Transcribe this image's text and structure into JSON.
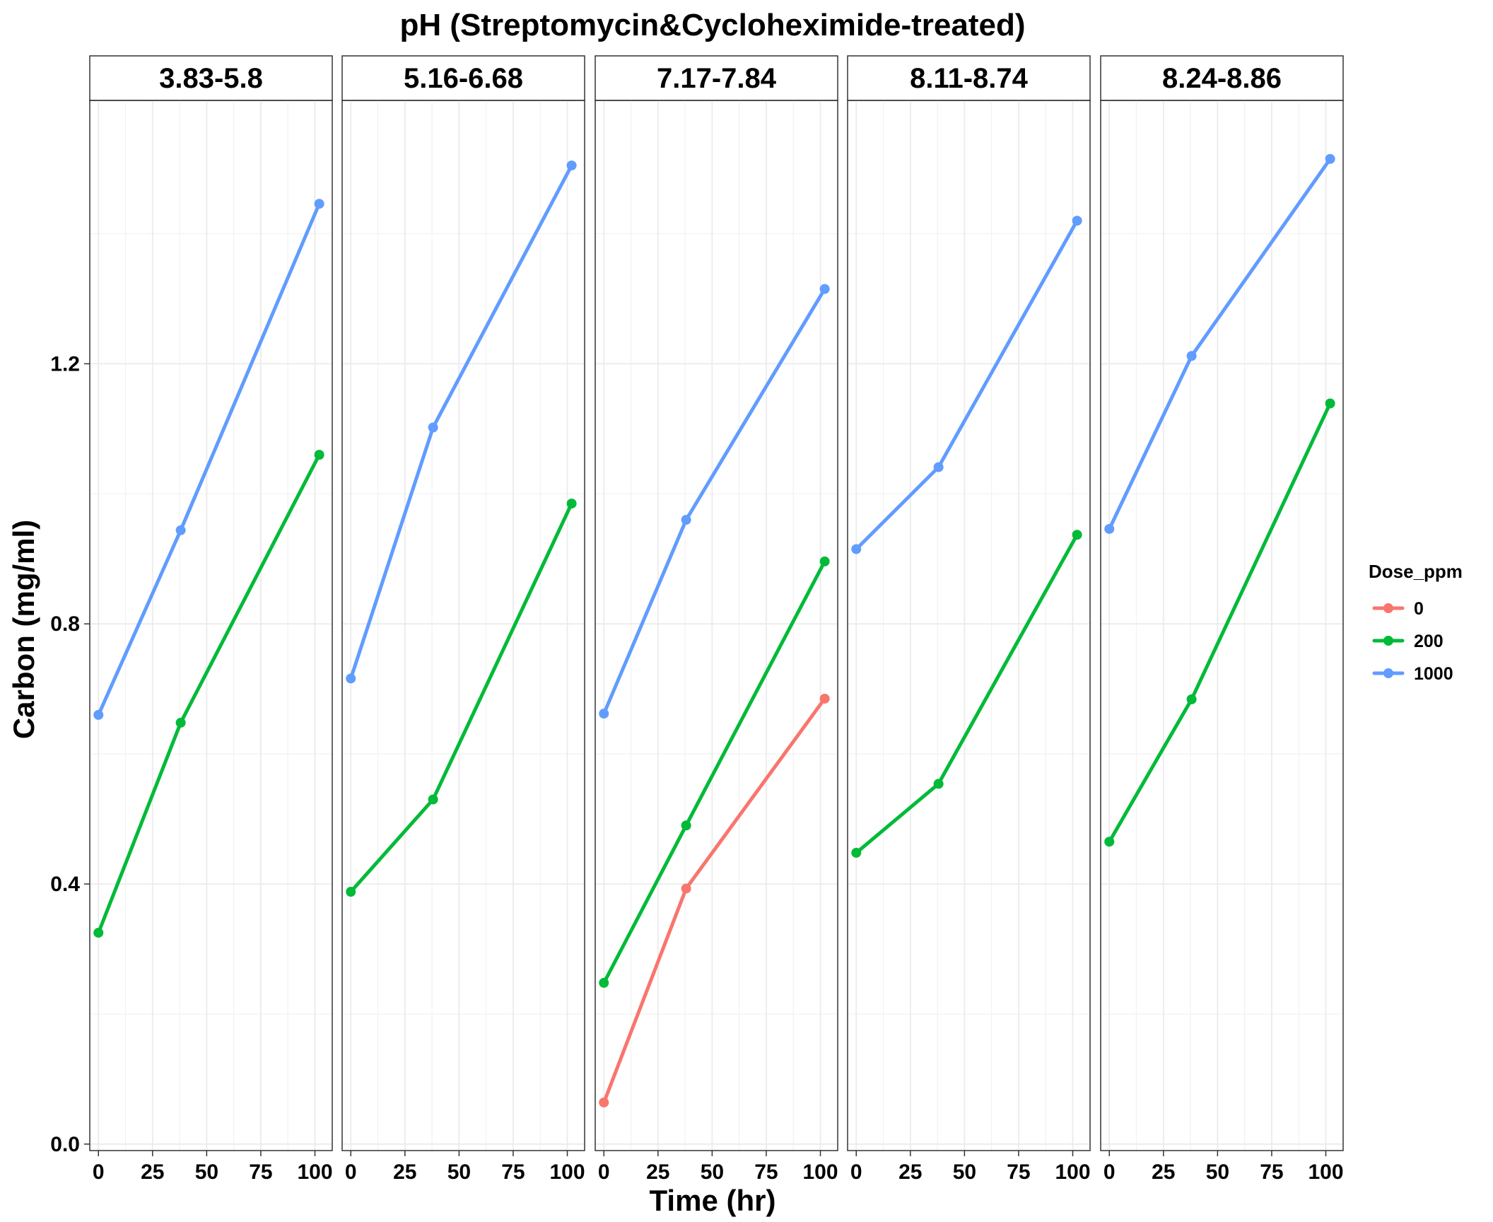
{
  "chart_data": {
    "type": "line",
    "title": "pH (Streptomycin&Cycloheximide-treated)",
    "xlabel": "Time (hr)",
    "ylabel": "Carbon (mg/ml)",
    "xlim": [
      -4,
      108
    ],
    "ylim": [
      -0.01,
      1.605
    ],
    "x_ticks": [
      0,
      25,
      50,
      75,
      100
    ],
    "x_tick_labels": [
      "0",
      "25",
      "50",
      "75",
      "100"
    ],
    "y_ticks": [
      0.0,
      0.4,
      0.8,
      1.2
    ],
    "y_tick_labels": [
      "0.0",
      "0.4",
      "0.8",
      "1.2"
    ],
    "grid": true,
    "legend": {
      "title": "Dose_ppm",
      "position": "right",
      "entries": [
        {
          "label": "0",
          "color": "#F8766D"
        },
        {
          "label": "200",
          "color": "#00BA38"
        },
        {
          "label": "1000",
          "color": "#619CFF"
        }
      ]
    },
    "panels": [
      {
        "label": "3.83-5.8",
        "series": [
          {
            "name": "200",
            "color": "#00BA38",
            "x": [
              0,
              38,
              102
            ],
            "y": [
              0.325,
              0.648,
              1.06
            ]
          },
          {
            "name": "1000",
            "color": "#619CFF",
            "x": [
              0,
              38,
              102
            ],
            "y": [
              0.66,
              0.944,
              1.446
            ]
          }
        ]
      },
      {
        "label": "5.16-6.68",
        "series": [
          {
            "name": "200",
            "color": "#00BA38",
            "x": [
              0,
              38,
              102
            ],
            "y": [
              0.388,
              0.53,
              0.985
            ]
          },
          {
            "name": "1000",
            "color": "#619CFF",
            "x": [
              0,
              38,
              102
            ],
            "y": [
              0.716,
              1.102,
              1.505
            ]
          }
        ]
      },
      {
        "label": "7.17-7.84",
        "series": [
          {
            "name": "0",
            "color": "#F8766D",
            "x": [
              0,
              38,
              102
            ],
            "y": [
              0.064,
              0.393,
              0.685
            ]
          },
          {
            "name": "200",
            "color": "#00BA38",
            "x": [
              0,
              38,
              102
            ],
            "y": [
              0.248,
              0.49,
              0.896
            ]
          },
          {
            "name": "1000",
            "color": "#619CFF",
            "x": [
              0,
              38,
              102
            ],
            "y": [
              0.662,
              0.96,
              1.315
            ]
          }
        ]
      },
      {
        "label": "8.11-8.74",
        "series": [
          {
            "name": "200",
            "color": "#00BA38",
            "x": [
              0,
              38,
              102
            ],
            "y": [
              0.448,
              0.554,
              0.937
            ]
          },
          {
            "name": "1000",
            "color": "#619CFF",
            "x": [
              0,
              38,
              102
            ],
            "y": [
              0.915,
              1.041,
              1.42
            ]
          }
        ]
      },
      {
        "label": "8.24-8.86",
        "series": [
          {
            "name": "200",
            "color": "#00BA38",
            "x": [
              0,
              38,
              102
            ],
            "y": [
              0.465,
              0.684,
              1.139
            ]
          },
          {
            "name": "1000",
            "color": "#619CFF",
            "x": [
              0,
              38,
              102
            ],
            "y": [
              0.946,
              1.212,
              1.515
            ]
          }
        ]
      }
    ]
  }
}
